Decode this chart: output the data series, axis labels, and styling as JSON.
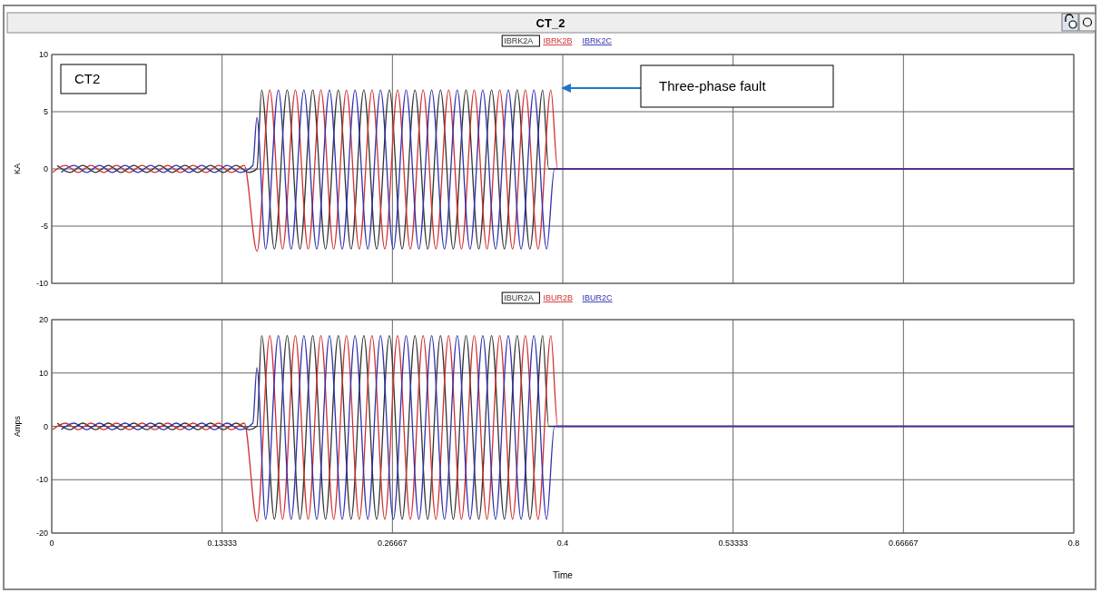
{
  "chart_data": [
    {
      "type": "line",
      "title": "CT_2",
      "ylabel": "KA",
      "annotations": [
        "CT2",
        "Three-phase fault"
      ],
      "legend": "top",
      "grid": true,
      "tick_labels": "y",
      "xlim": [
        0,
        0.8
      ],
      "xticks": [
        0,
        0.13333,
        0.26667,
        0.4,
        0.53333,
        0.66667,
        0.8
      ],
      "ylim": [
        -10,
        10
      ],
      "yticks": [
        -10,
        -5,
        0,
        5,
        10
      ],
      "series": [
        {
          "name": "IBRK2A",
          "color": "#333333",
          "x": [
            0.0043,
            0.0143,
            0.0243,
            0.0343,
            0.0443,
            0.0543,
            0.0643,
            0.0743,
            0.0843,
            0.0943,
            0.1043,
            0.1143,
            0.1243,
            0.1343,
            0.1443,
            0.1543,
            0.1606,
            0.1643,
            0.1743,
            0.1843,
            0.1943,
            0.2043,
            0.2143,
            0.2243,
            0.2343,
            0.2443,
            0.2543,
            0.2643,
            0.2743,
            0.2843,
            0.2943,
            0.3043,
            0.3143,
            0.3243,
            0.3343,
            0.3443,
            0.3543,
            0.3643,
            0.3743,
            0.3843,
            0.389,
            0.8
          ],
          "values": [
            0.3,
            -0.3,
            0.3,
            -0.3,
            0.3,
            -0.3,
            0.3,
            -0.3,
            0.3,
            -0.3,
            0.3,
            -0.3,
            0.3,
            -0.3,
            0.3,
            -0.3,
            0,
            6.9,
            -7.0,
            6.9,
            -7.0,
            6.9,
            -7.0,
            6.9,
            -7.0,
            6.9,
            -7.0,
            6.9,
            -7.0,
            6.9,
            -7.0,
            6.9,
            -7.0,
            6.9,
            -7.0,
            6.9,
            -7.0,
            6.9,
            -7.0,
            6.9,
            0,
            0
          ]
        },
        {
          "name": "IBRK2B",
          "color": "#d03030",
          "x": [
            0.0007,
            0.0107,
            0.0207,
            0.0307,
            0.0407,
            0.0507,
            0.0607,
            0.0707,
            0.0807,
            0.0907,
            0.1007,
            0.1107,
            0.1207,
            0.1307,
            0.1407,
            0.1507,
            0.1607,
            0.1707,
            0.1807,
            0.1907,
            0.2007,
            0.2107,
            0.2207,
            0.2307,
            0.2407,
            0.2507,
            0.2607,
            0.2707,
            0.2807,
            0.2907,
            0.3007,
            0.3107,
            0.3207,
            0.3307,
            0.3407,
            0.3507,
            0.3607,
            0.3707,
            0.3807,
            0.3907,
            0.396,
            0.8
          ],
          "values": [
            -0.3,
            0.3,
            -0.3,
            0.3,
            -0.3,
            0.3,
            -0.3,
            0.3,
            -0.3,
            0.3,
            -0.3,
            0.3,
            -0.3,
            0.3,
            -0.3,
            0.3,
            -7.2,
            6.9,
            -7.0,
            6.9,
            -7.0,
            6.9,
            -7.0,
            6.9,
            -7.0,
            6.9,
            -7.0,
            6.9,
            -7.0,
            6.9,
            -7.0,
            6.9,
            -7.0,
            6.9,
            -7.0,
            6.9,
            -7.0,
            6.9,
            -7.0,
            6.9,
            0,
            0
          ]
        },
        {
          "name": "IBRK2C",
          "color": "#3030b0",
          "x": [
            0.0074,
            0.0174,
            0.0274,
            0.0374,
            0.0474,
            0.0574,
            0.0674,
            0.0774,
            0.0874,
            0.0974,
            0.1074,
            0.1174,
            0.1274,
            0.1374,
            0.1474,
            0.1574,
            0.1606,
            0.1674,
            0.1774,
            0.1874,
            0.1974,
            0.2074,
            0.2174,
            0.2274,
            0.2374,
            0.2474,
            0.2574,
            0.2674,
            0.2774,
            0.2874,
            0.2974,
            0.3074,
            0.3174,
            0.3274,
            0.3374,
            0.3474,
            0.3574,
            0.3674,
            0.3774,
            0.3874,
            0.3935,
            0.8
          ],
          "values": [
            -0.3,
            0.3,
            -0.3,
            0.3,
            -0.3,
            0.3,
            -0.3,
            0.3,
            -0.3,
            0.3,
            -0.3,
            0.3,
            -0.3,
            0.3,
            -0.3,
            0.3,
            4.5,
            -7.0,
            6.9,
            -7.0,
            6.9,
            -7.0,
            6.9,
            -7.0,
            6.9,
            -7.0,
            6.9,
            -7.0,
            6.9,
            -7.0,
            6.9,
            -7.0,
            6.9,
            -7.0,
            6.9,
            -7.0,
            6.9,
            -7.0,
            6.9,
            -7.0,
            0,
            0
          ]
        }
      ]
    },
    {
      "type": "line",
      "xlabel": "Time",
      "ylabel": "Amps",
      "legend": "top",
      "grid": true,
      "xlim": [
        0,
        0.8
      ],
      "xticks": [
        0,
        0.13333,
        0.26667,
        0.4,
        0.53333,
        0.66667,
        0.8
      ],
      "ylim": [
        -20,
        20
      ],
      "yticks": [
        -20,
        -10,
        0,
        10,
        20
      ],
      "series": [
        {
          "name": "IBUR2A",
          "color": "#333333",
          "x": [
            0.0043,
            0.0143,
            0.0243,
            0.0343,
            0.0443,
            0.0543,
            0.0643,
            0.0743,
            0.0843,
            0.0943,
            0.1043,
            0.1143,
            0.1243,
            0.1343,
            0.1443,
            0.1543,
            0.1606,
            0.1643,
            0.1743,
            0.1843,
            0.1943,
            0.2043,
            0.2143,
            0.2243,
            0.2343,
            0.2443,
            0.2543,
            0.2643,
            0.2743,
            0.2843,
            0.2943,
            0.3043,
            0.3143,
            0.3243,
            0.3343,
            0.3443,
            0.3543,
            0.3643,
            0.3743,
            0.3843,
            0.389,
            0.8
          ],
          "values": [
            0.6,
            -0.6,
            0.6,
            -0.6,
            0.6,
            -0.6,
            0.6,
            -0.6,
            0.6,
            -0.6,
            0.6,
            -0.6,
            0.6,
            -0.6,
            0.6,
            -0.6,
            0,
            17,
            -17.4,
            17,
            -17.4,
            17,
            -17.4,
            17,
            -17.4,
            17,
            -17.4,
            17,
            -17.4,
            17,
            -17.4,
            17,
            -17.4,
            17,
            -17.4,
            17,
            -17.4,
            17,
            -17.4,
            17,
            0,
            0
          ]
        },
        {
          "name": "IBUR2B",
          "color": "#d03030",
          "x": [
            0.0007,
            0.0107,
            0.0207,
            0.0307,
            0.0407,
            0.0507,
            0.0607,
            0.0707,
            0.0807,
            0.0907,
            0.1007,
            0.1107,
            0.1207,
            0.1307,
            0.1407,
            0.1507,
            0.1607,
            0.1707,
            0.1807,
            0.1907,
            0.2007,
            0.2107,
            0.2207,
            0.2307,
            0.2407,
            0.2507,
            0.2607,
            0.2707,
            0.2807,
            0.2907,
            0.3007,
            0.3107,
            0.3207,
            0.3307,
            0.3407,
            0.3507,
            0.3607,
            0.3707,
            0.3807,
            0.3907,
            0.396,
            0.8
          ],
          "values": [
            -0.6,
            0.6,
            -0.6,
            0.6,
            -0.6,
            0.6,
            -0.6,
            0.6,
            -0.6,
            0.6,
            -0.6,
            0.6,
            -0.6,
            0.6,
            -0.6,
            0.6,
            -17.8,
            17,
            -17.4,
            17,
            -17.4,
            17,
            -17.4,
            17,
            -17.4,
            17,
            -17.4,
            17,
            -17.4,
            17,
            -17.4,
            17,
            -17.4,
            17,
            -17.4,
            17,
            -17.4,
            17,
            -17.4,
            17,
            0,
            0
          ]
        },
        {
          "name": "IBUR2C",
          "color": "#3030b0",
          "x": [
            0.0074,
            0.0174,
            0.0274,
            0.0374,
            0.0474,
            0.0574,
            0.0674,
            0.0774,
            0.0874,
            0.0974,
            0.1074,
            0.1174,
            0.1274,
            0.1374,
            0.1474,
            0.1574,
            0.1606,
            0.1674,
            0.1774,
            0.1874,
            0.1974,
            0.2074,
            0.2174,
            0.2274,
            0.2374,
            0.2474,
            0.2574,
            0.2674,
            0.2774,
            0.2874,
            0.2974,
            0.3074,
            0.3174,
            0.3274,
            0.3374,
            0.3474,
            0.3574,
            0.3674,
            0.3774,
            0.3874,
            0.3935,
            0.8
          ],
          "values": [
            -0.6,
            0.6,
            -0.6,
            0.6,
            -0.6,
            0.6,
            -0.6,
            0.6,
            -0.6,
            0.6,
            -0.6,
            0.6,
            -0.6,
            0.6,
            -0.6,
            0.6,
            11,
            -17.4,
            17,
            -17.4,
            17,
            -17.4,
            17,
            -17.4,
            17,
            -17.4,
            17,
            -17.4,
            17,
            -17.4,
            17,
            -17.4,
            17,
            -17.4,
            17,
            -17.4,
            17,
            -17.4,
            17,
            -17.4,
            0,
            0
          ]
        }
      ]
    }
  ]
}
